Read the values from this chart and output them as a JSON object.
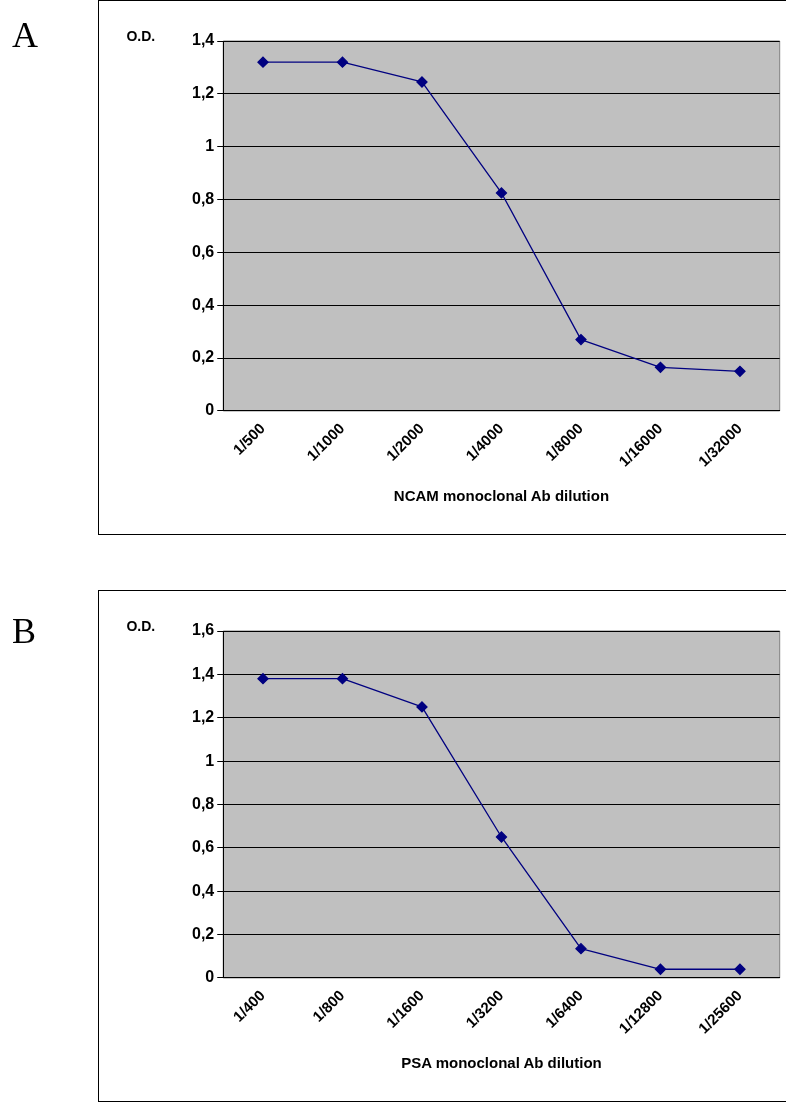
{
  "chart_data": [
    {
      "type": "line",
      "title": "A",
      "ylabel": "O.D.",
      "xlabel": "NCAM monoclonal Ab dilution",
      "categories": [
        "1/500",
        "1/1000",
        "1/2000",
        "1/4000",
        "1/8000",
        "1/16000",
        "1/32000"
      ],
      "series": [
        {
          "color": "#000080",
          "values": [
            1.32,
            1.32,
            1.245,
            0.825,
            0.27,
            0.165,
            0.15
          ]
        }
      ],
      "ylim": [
        0,
        1.4
      ],
      "yticks": [
        {
          "value": 0,
          "label": "0"
        },
        {
          "value": 0.2,
          "label": "0,2"
        },
        {
          "value": 0.4,
          "label": "0,4"
        },
        {
          "value": 0.6,
          "label": "0,6"
        },
        {
          "value": 0.8,
          "label": "0,8"
        },
        {
          "value": 1,
          "label": "1"
        },
        {
          "value": 1.2,
          "label": "1,2"
        },
        {
          "value": 1.4,
          "label": "1,4"
        }
      ],
      "grid": "y",
      "legend": false,
      "marker": "diamond",
      "line_style": "solid"
    },
    {
      "type": "line",
      "title": "B",
      "ylabel": "O.D.",
      "xlabel": "PSA monoclonal Ab dilution",
      "categories": [
        "1/400",
        "1/800",
        "1/1600",
        "1/3200",
        "1/6400",
        "1/12800",
        "1/25600"
      ],
      "series": [
        {
          "color": "#000080",
          "values": [
            1.38,
            1.38,
            1.25,
            0.65,
            0.135,
            0.04,
            0.04
          ]
        }
      ],
      "ylim": [
        0,
        1.6
      ],
      "yticks": [
        {
          "value": 0,
          "label": "0"
        },
        {
          "value": 0.2,
          "label": "0,2"
        },
        {
          "value": 0.4,
          "label": "0,4"
        },
        {
          "value": 0.6,
          "label": "0,6"
        },
        {
          "value": 0.8,
          "label": "0,8"
        },
        {
          "value": 1,
          "label": "1"
        },
        {
          "value": 1.2,
          "label": "1,2"
        },
        {
          "value": 1.4,
          "label": "1,4"
        },
        {
          "value": 1.6,
          "label": "1,6"
        }
      ],
      "grid": "y",
      "legend": false,
      "marker": "diamond",
      "line_style": "solid"
    }
  ]
}
